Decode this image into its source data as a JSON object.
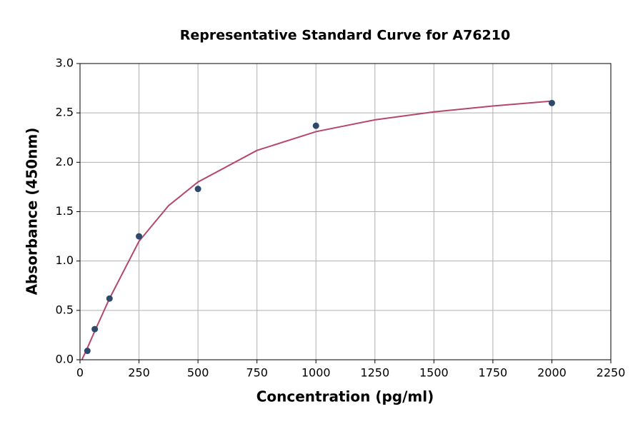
{
  "chart_data": {
    "type": "scatter",
    "title": "Representative Standard Curve for A76210",
    "x_label": "Concentration (pg/ml)",
    "y_label": "Absorbance (450nm)",
    "xlim": [
      0,
      2250
    ],
    "ylim": [
      0,
      3
    ],
    "xticks": [
      0,
      250,
      500,
      750,
      1000,
      1250,
      1500,
      1750,
      2000,
      2250
    ],
    "yticks": [
      {
        "value": 0,
        "label": "0.0"
      },
      0.5,
      {
        "value": 1,
        "label": "1.0"
      },
      1.5,
      {
        "value": 2,
        "label": "2.0"
      },
      2.5,
      {
        "value": 3,
        "label": "3.0"
      }
    ],
    "grid": true,
    "series": [
      {
        "type": "scatter",
        "color": "#2d4a6b",
        "x": [
          31.25,
          62.5,
          125,
          250,
          500,
          1000,
          2000
        ],
        "values": [
          0.09,
          0.31,
          0.62,
          1.25,
          1.73,
          2.37,
          2.6
        ]
      },
      {
        "type": "line",
        "color": "#b5476e",
        "x": [
          8,
          31.25,
          62.5,
          125,
          250,
          375,
          500,
          750,
          1000,
          1250,
          1500,
          1750,
          2000
        ],
        "values": [
          0,
          0.12,
          0.29,
          0.62,
          1.2,
          1.56,
          1.8,
          2.12,
          2.31,
          2.43,
          2.51,
          2.57,
          2.62
        ]
      }
    ]
  }
}
